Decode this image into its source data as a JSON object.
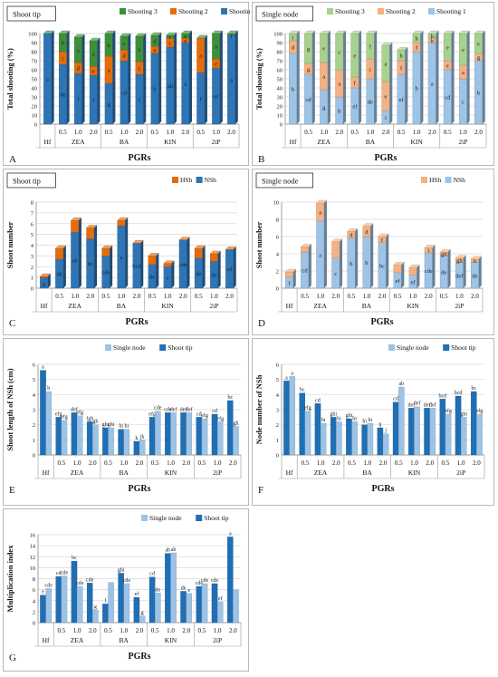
{
  "chart_data": [
    {
      "type": "bar",
      "stacked": true,
      "letter": "A",
      "title": "Shoot tip",
      "ylabel": "Total shooting (%)",
      "xlabel": "PGRs",
      "ylim": [
        0,
        100
      ],
      "yticks": [
        0,
        10,
        20,
        30,
        40,
        50,
        60,
        70,
        80,
        90,
        100
      ],
      "groups": [
        "Hf",
        "ZEA",
        "BA",
        "KIN",
        "2iP"
      ],
      "categories": [
        "",
        "0.5",
        "1.0",
        "2.0",
        "0.5",
        "1.0",
        "2.0",
        "0.5",
        "1.0",
        "2.0",
        "0.5",
        "1.0",
        "2.0"
      ],
      "legend": "top-right",
      "colors": [
        "#2e75b6",
        "#e46c0a",
        "#3f8f3a"
      ],
      "series": [
        {
          "name": "Shooting 1",
          "values": [
            100,
            66,
            56,
            54,
            45,
            70,
            55,
            78,
            85,
            90,
            57,
            62,
            98
          ]
        },
        {
          "name": "Shooting 2",
          "values": [
            0,
            14,
            12,
            10,
            30,
            12,
            14,
            8,
            10,
            5,
            38,
            10,
            0
          ]
        },
        {
          "name": "Shooting 3",
          "values": [
            0,
            20,
            28,
            28,
            25,
            15,
            28,
            12,
            3,
            5,
            0,
            28,
            2
          ]
        }
      ],
      "bar_labels": [
        [
          "a",
          "de",
          "f",
          "f",
          "g",
          "cd",
          "f",
          "b",
          "ab",
          "a",
          "f",
          "ef",
          "a"
        ],
        [
          "",
          "c",
          "d",
          "e",
          "a",
          "d",
          "c",
          "e",
          "c",
          "e",
          "a",
          "e",
          ""
        ],
        [
          "f",
          "b",
          "a",
          "a",
          "b",
          "c",
          "a",
          "d",
          "f",
          "e",
          "f",
          "a",
          "f"
        ]
      ]
    },
    {
      "type": "bar",
      "stacked": true,
      "letter": "B",
      "title": "Single node",
      "ylabel": "Total shooting (%)",
      "xlabel": "PGRs",
      "ylim": [
        0,
        100
      ],
      "yticks": [
        0,
        10,
        20,
        30,
        40,
        50,
        60,
        70,
        80,
        90,
        100
      ],
      "groups": [
        "Hf",
        "ZEA",
        "BA",
        "KIN",
        "2iP"
      ],
      "categories": [
        "",
        "0.5",
        "1.0",
        "2.0",
        "0.5",
        "1.0",
        "2.0",
        "0.5",
        "1.0",
        "2.0",
        "0.5",
        "1.0",
        "2.0"
      ],
      "legend": "top-right",
      "colors": [
        "#9dc3e6",
        "#f4b183",
        "#a9d18e"
      ],
      "series": [
        {
          "name": "Shooting 1",
          "values": [
            78,
            55,
            38,
            30,
            40,
            50,
            15,
            55,
            80,
            90,
            60,
            50,
            70
          ]
        },
        {
          "name": "Shooting 2",
          "values": [
            14,
            12,
            30,
            30,
            12,
            22,
            32,
            15,
            10,
            5,
            10,
            15,
            8
          ]
        },
        {
          "name": "Shooting 3",
          "values": [
            8,
            33,
            32,
            40,
            48,
            28,
            40,
            12,
            10,
            5,
            30,
            35,
            22
          ]
        }
      ],
      "bar_labels": [
        [
          "b",
          "cd",
          "g",
          "h",
          "ef",
          "de",
          "i",
          "ef",
          "b",
          "a",
          "cd",
          "c",
          "b"
        ],
        [
          "d",
          "g",
          "a",
          "a",
          "f",
          "c",
          "e",
          "f",
          "f",
          "h",
          "e",
          "a",
          "g"
        ],
        [
          "i",
          "g",
          "e",
          "c",
          "e",
          "f",
          "a",
          "h",
          "h",
          "h",
          "e",
          "e",
          "e"
        ]
      ]
    },
    {
      "type": "bar",
      "stacked": true,
      "letter": "C",
      "title": "Shoot tip",
      "ylabel": "Shoot number",
      "xlabel": "PGRs",
      "ylim": [
        0,
        8
      ],
      "yticks": [
        0,
        1,
        2,
        3,
        4,
        5,
        6,
        7,
        8
      ],
      "groups": [
        "Hf",
        "ZEA",
        "BA",
        "KIN",
        "2iP"
      ],
      "categories": [
        "",
        "0.5",
        "1.0",
        "2.0",
        "0.5",
        "1.0",
        "2.0",
        "0.5",
        "1.0",
        "2.0",
        "0.5",
        "1.0",
        "2.0"
      ],
      "legend": "top-right",
      "colors": [
        "#2e75b6",
        "#e46c0a"
      ],
      "series": [
        {
          "name": "NSh",
          "values": [
            1.0,
            2.7,
            5.2,
            4.6,
            3.0,
            5.8,
            4.2,
            2.2,
            2.0,
            4.5,
            2.8,
            2.5,
            3.6
          ]
        },
        {
          "name": "HSh",
          "values": [
            0.1,
            1.0,
            1.1,
            1.0,
            0.7,
            0.5,
            0.0,
            0.8,
            0.3,
            0.0,
            0.9,
            0.7,
            0.0
          ]
        }
      ],
      "bar_labels": [
        [
          "g",
          "de",
          "ab",
          "bc",
          "cde",
          "a",
          "bcd",
          "de",
          "e",
          "cde",
          "de",
          "de",
          "cd"
        ],
        [
          "",
          "",
          "",
          "",
          "",
          "",
          "f",
          "",
          "",
          "g",
          "",
          "",
          "g"
        ]
      ]
    },
    {
      "type": "bar",
      "stacked": true,
      "letter": "D",
      "title": "Single node",
      "ylabel": "Shoot number",
      "xlabel": "PGRs",
      "ylim": [
        0,
        10
      ],
      "yticks": [
        0,
        2,
        4,
        6,
        8,
        10
      ],
      "groups": [
        "Hf",
        "ZEA",
        "BA",
        "KIN",
        "2iP"
      ],
      "categories": [
        "",
        "0.5",
        "1.0",
        "2.0",
        "0.5",
        "1.0",
        "2.0",
        "0.5",
        "1.0",
        "2.0",
        "0.5",
        "1.0",
        "2.0"
      ],
      "legend": "top-right",
      "colors": [
        "#9dc3e6",
        "#f4b183"
      ],
      "series": [
        {
          "name": "NSh",
          "values": [
            1.3,
            4.2,
            7.8,
            3.5,
            5.8,
            6.0,
            5.3,
            1.8,
            1.5,
            4.1,
            3.8,
            3.0,
            3.0
          ]
        },
        {
          "name": "HSh",
          "values": [
            0.6,
            0.6,
            2.1,
            1.9,
            0.8,
            1.2,
            0.7,
            0.9,
            0.9,
            0.6,
            0.4,
            0.5,
            0.4
          ]
        }
      ],
      "bar_labels": [
        [
          "f",
          "cd",
          "a",
          "c",
          "b",
          "b",
          "bc",
          "ef",
          "ef",
          "cde",
          "de",
          "def",
          "de"
        ],
        [
          "",
          "",
          "a",
          "",
          "d",
          "d",
          "f",
          "",
          "",
          "i",
          "gh",
          "gh",
          "h"
        ]
      ]
    },
    {
      "type": "bar",
      "letter": "E",
      "ylabel": "Shoot length of NSh (cm)",
      "xlabel": "PGRs",
      "ylim": [
        0,
        6
      ],
      "yticks": [
        0,
        1,
        2,
        3,
        4,
        5,
        6
      ],
      "groups": [
        "Hf",
        "ZEA",
        "BA",
        "KIN",
        "2iP"
      ],
      "categories": [
        "",
        "0.5",
        "1.0",
        "2.0",
        "0.5",
        "1.0",
        "2.0",
        "0.5",
        "1.0",
        "2.0",
        "0.5",
        "1.0",
        "2.0"
      ],
      "legend": "top-center",
      "colors": [
        "#1f6fb5",
        "#9dc3e6"
      ],
      "series": [
        {
          "name": "Shoot tip",
          "values": [
            5.6,
            2.5,
            2.8,
            2.2,
            1.8,
            1.7,
            0.9,
            2.5,
            2.8,
            2.8,
            2.5,
            2.7,
            3.6
          ]
        },
        {
          "name": "Single node",
          "values": [
            4.2,
            2.3,
            2.6,
            2.0,
            1.8,
            1.7,
            1.0,
            2.9,
            2.8,
            2.8,
            2.4,
            2.2,
            1.9
          ]
        }
      ],
      "bar_labels": [
        [
          "a",
          "efg",
          "def",
          "fgh",
          "ghi",
          "hi",
          "k",
          "efg",
          "cde",
          "def",
          "cd",
          "cd",
          "bc"
        ],
        [
          "b",
          "efg",
          "efg",
          "gh",
          "ghi",
          "hi",
          "jk",
          "cde",
          "def",
          "def",
          "efg",
          "efg",
          "gh"
        ]
      ]
    },
    {
      "type": "bar",
      "letter": "F",
      "ylabel": "Node number of NSh",
      "xlabel": "PGRs",
      "ylim": [
        0,
        6
      ],
      "yticks": [
        0,
        1,
        2,
        3,
        4,
        5,
        6
      ],
      "groups": [
        "Hf",
        "ZEA",
        "BA",
        "KIN",
        "2iP"
      ],
      "categories": [
        "",
        "0.5",
        "1.0",
        "2.0",
        "0.5",
        "1.0",
        "2.0",
        "0.5",
        "1.0",
        "2.0",
        "0.5",
        "1.0",
        "2.0"
      ],
      "legend": "top-right",
      "colors": [
        "#1f6fb5",
        "#9dc3e6"
      ],
      "series": [
        {
          "name": "Shoot tip",
          "values": [
            4.9,
            4.1,
            3.4,
            2.5,
            2.4,
            2.0,
            1.8,
            3.5,
            3.1,
            3.1,
            3.7,
            3.9,
            4.2
          ]
        },
        {
          "name": "Single node",
          "values": [
            5.2,
            2.9,
            2.1,
            2.2,
            2.2,
            2.1,
            1.4,
            4.5,
            3.2,
            3.1,
            2.7,
            2.5,
            2.7
          ]
        }
      ],
      "bar_labels": [
        [
          "a",
          "bc",
          "cd",
          "ghi",
          "ghi",
          "hi",
          "ij",
          "cd",
          "def",
          "def",
          "bcd",
          "bcd",
          "bc"
        ],
        [
          "a",
          "efg",
          "hi",
          "hi",
          "hi",
          "hi",
          "j",
          "ab",
          "def",
          "def",
          "efg",
          "ghi",
          "efg"
        ]
      ]
    },
    {
      "type": "bar",
      "letter": "G",
      "ylabel": "Multiplication index",
      "xlabel": "PGRs",
      "ylim": [
        0,
        16
      ],
      "yticks": [
        0,
        2,
        4,
        6,
        8,
        10,
        12,
        14,
        16
      ],
      "groups": [
        "Hf",
        "ZEA",
        "BA",
        "KIN",
        "2iP"
      ],
      "categories": [
        "",
        "0.5",
        "1.0",
        "2.0",
        "0.5",
        "1.0",
        "2.0",
        "0.5",
        "1.0",
        "2.0",
        "0.5",
        "1.0",
        "2.0"
      ],
      "legend": "top-right",
      "colors": [
        "#1f6fb5",
        "#9dc3e6"
      ],
      "series": [
        {
          "name": "Shoot tip",
          "values": [
            5.0,
            8.4,
            11.2,
            7.2,
            3.4,
            9.0,
            4.6,
            8.3,
            12.6,
            5.7,
            6.6,
            7.1,
            15.6
          ]
        },
        {
          "name": "Single node",
          "values": [
            6.2,
            8.5,
            6.6,
            2.3,
            7.3,
            7.1,
            1.2,
            5.4,
            12.7,
            5.3,
            7.1,
            3.8,
            6.0
          ]
        }
      ],
      "bar_labels": [
        [
          "e",
          "cd",
          "bc",
          "cde",
          "f",
          "ghi",
          "ef",
          "cd",
          "ab",
          "de",
          "cde",
          "cde",
          "a"
        ],
        [
          "cde",
          "cde",
          "cde",
          "g",
          "",
          "cde",
          "g",
          "de",
          "ab",
          "e",
          "cde",
          "ef",
          ""
        ]
      ]
    }
  ]
}
